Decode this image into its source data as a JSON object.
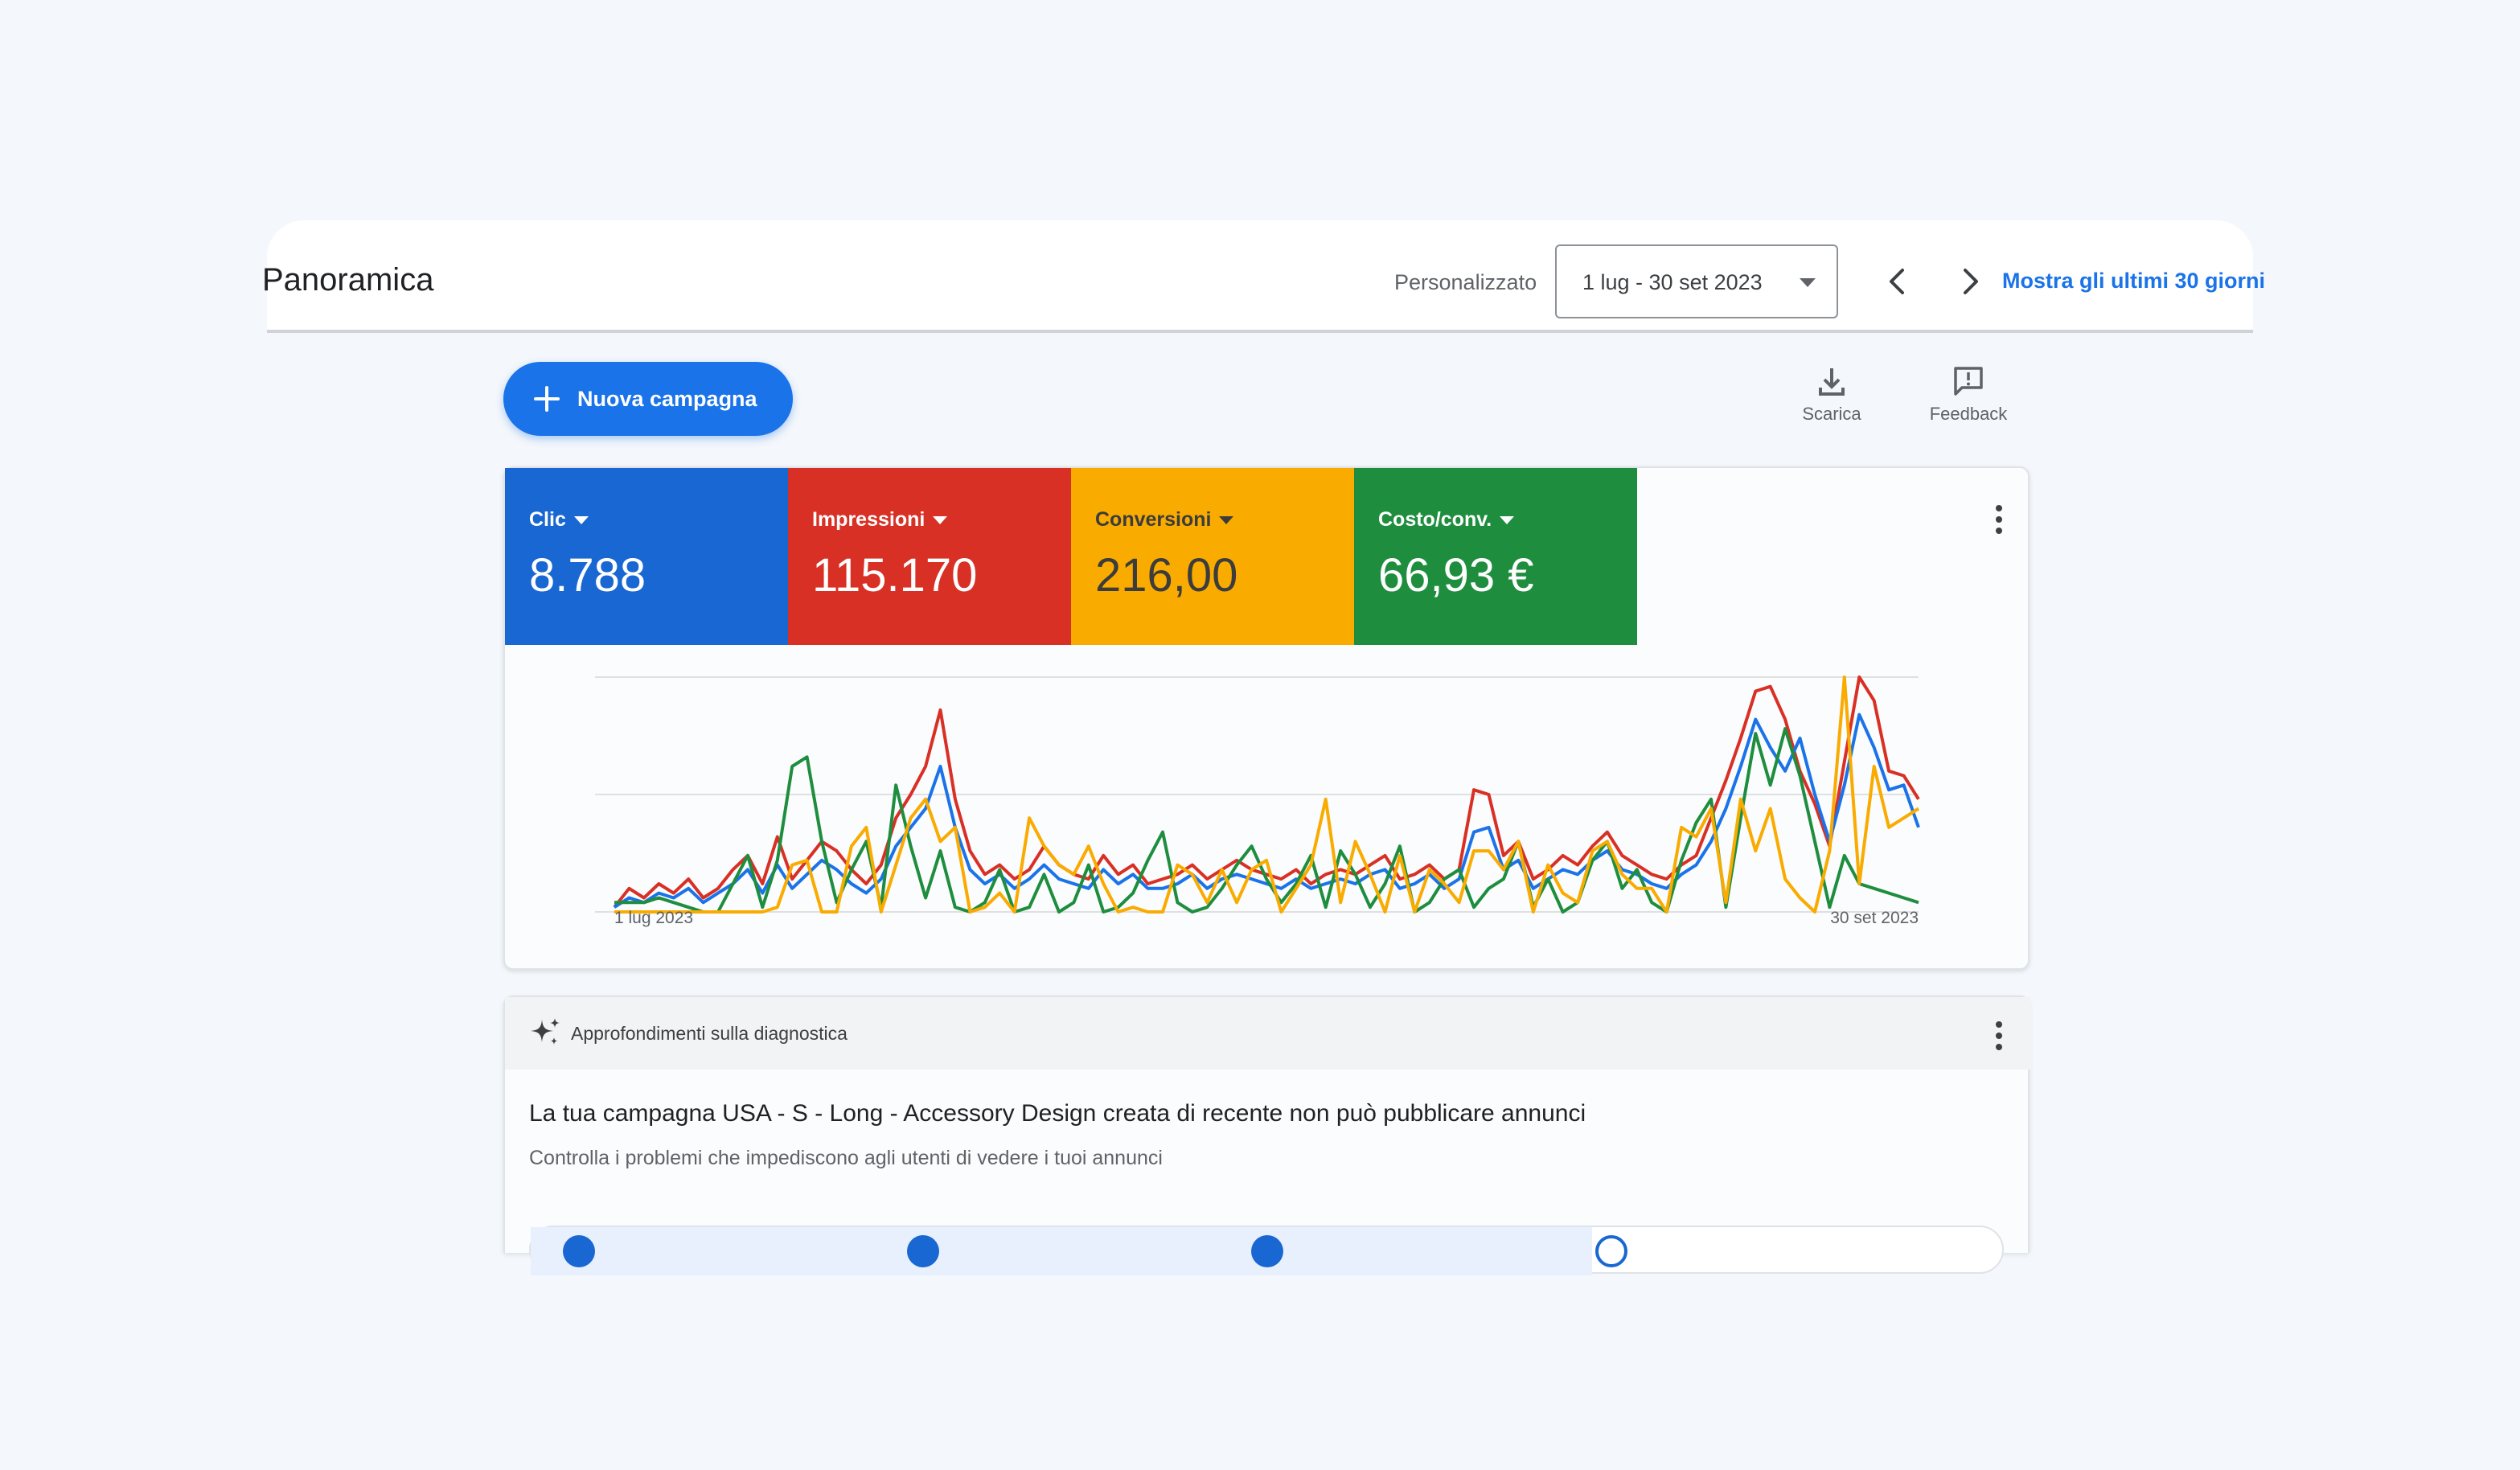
{
  "header": {
    "title": "Panoramica",
    "date_label": "Personalizzato",
    "date_range": "1 lug - 30 set 2023",
    "last30_link": "Mostra gli ultimi 30 giorni"
  },
  "toolbar": {
    "new_campaign_label": "Nuova campagna",
    "download_label": "Scarica",
    "feedback_label": "Feedback"
  },
  "metrics": [
    {
      "name": "Clic",
      "value": "8.788",
      "color": "#1967d2"
    },
    {
      "name": "Impressioni",
      "value": "115.170",
      "color": "#d93025"
    },
    {
      "name": "Conversioni",
      "value": "216,00",
      "color": "#f9ab00"
    },
    {
      "name": "Costo/conv.",
      "value": "66,93 €",
      "color": "#1e8e3e"
    }
  ],
  "chart_data": {
    "type": "line",
    "x_start_label": "1 lug 2023",
    "x_end_label": "30 set 2023",
    "grid": true,
    "y_axis_labels_shown": false,
    "series": [
      {
        "color": "#d93025",
        "values": [
          2,
          10,
          6,
          12,
          8,
          14,
          6,
          10,
          18,
          24,
          12,
          32,
          14,
          22,
          30,
          26,
          18,
          12,
          20,
          40,
          50,
          62,
          86,
          48,
          26,
          16,
          20,
          14,
          18,
          28,
          20,
          16,
          14,
          24,
          16,
          20,
          12,
          14,
          16,
          20,
          14,
          18,
          22,
          18,
          16,
          14,
          18,
          12,
          16,
          18,
          16,
          20,
          24,
          14,
          16,
          20,
          14,
          18,
          52,
          50,
          24,
          30,
          14,
          18,
          24,
          20,
          28,
          34,
          24,
          20,
          16,
          14,
          20,
          24,
          40,
          56,
          74,
          94,
          96,
          82,
          60,
          46,
          28,
          64,
          100,
          90,
          60,
          58,
          48
        ]
      },
      {
        "color": "#1a73e8",
        "values": [
          2,
          6,
          4,
          8,
          6,
          10,
          4,
          8,
          12,
          18,
          8,
          20,
          10,
          16,
          22,
          18,
          12,
          8,
          14,
          28,
          36,
          44,
          62,
          36,
          18,
          12,
          16,
          10,
          14,
          20,
          14,
          12,
          10,
          18,
          12,
          16,
          10,
          10,
          12,
          16,
          10,
          14,
          16,
          14,
          12,
          10,
          14,
          10,
          12,
          14,
          12,
          16,
          18,
          10,
          12,
          16,
          10,
          14,
          34,
          36,
          18,
          22,
          10,
          14,
          18,
          16,
          22,
          26,
          18,
          16,
          12,
          10,
          16,
          20,
          30,
          44,
          62,
          82,
          70,
          60,
          74,
          50,
          30,
          54,
          84,
          70,
          52,
          54,
          36
        ]
      },
      {
        "color": "#1e8e3e",
        "values": [
          4,
          4,
          4,
          6,
          4,
          2,
          0,
          0,
          12,
          24,
          2,
          22,
          62,
          66,
          30,
          4,
          18,
          30,
          2,
          54,
          28,
          6,
          26,
          2,
          0,
          4,
          18,
          0,
          2,
          16,
          0,
          4,
          20,
          0,
          2,
          8,
          22,
          34,
          4,
          0,
          2,
          10,
          20,
          28,
          14,
          4,
          12,
          24,
          2,
          26,
          16,
          2,
          12,
          28,
          0,
          4,
          14,
          18,
          2,
          10,
          14,
          30,
          2,
          14,
          0,
          4,
          22,
          30,
          10,
          18,
          4,
          0,
          22,
          38,
          48,
          2,
          40,
          76,
          54,
          78,
          58,
          30,
          2,
          24,
          12,
          10,
          8,
          6,
          4
        ]
      },
      {
        "color": "#f9ab00",
        "values": [
          0,
          0,
          0,
          0,
          0,
          0,
          0,
          0,
          0,
          0,
          0,
          2,
          20,
          22,
          0,
          0,
          28,
          36,
          0,
          20,
          40,
          48,
          30,
          36,
          0,
          2,
          8,
          0,
          40,
          28,
          20,
          16,
          28,
          12,
          0,
          2,
          0,
          0,
          20,
          16,
          4,
          18,
          4,
          18,
          22,
          0,
          10,
          20,
          48,
          4,
          30,
          16,
          0,
          24,
          0,
          18,
          12,
          4,
          26,
          26,
          18,
          30,
          0,
          20,
          8,
          4,
          26,
          30,
          16,
          10,
          10,
          0,
          36,
          32,
          44,
          4,
          48,
          26,
          44,
          14,
          6,
          0,
          26,
          100,
          12,
          62,
          36,
          40,
          44
        ]
      }
    ]
  },
  "diagnostics": {
    "header_label": "Approfondimenti sulla diagnostica",
    "title": "La tua campagna USA - S - Long - Accessory Design creata di recente non può pubblicare annunci",
    "subtitle": "Controlla i problemi che impediscono agli utenti di vedere i tuoi annunci",
    "progress_fraction": 0.75
  }
}
